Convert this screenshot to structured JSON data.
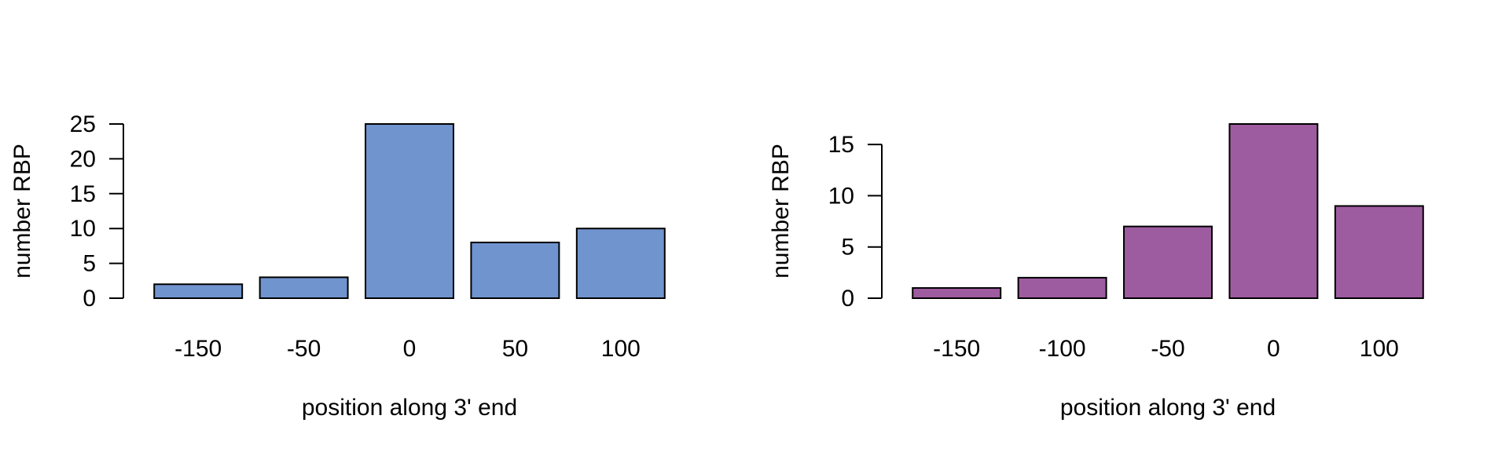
{
  "chart_data": [
    {
      "type": "bar",
      "categories": [
        "-150",
        "-50",
        "0",
        "50",
        "100"
      ],
      "values": [
        2,
        3,
        25,
        8,
        10
      ],
      "xlabel": "position along 3' end",
      "ylabel": "number RBP",
      "ylim": [
        0,
        25
      ],
      "yticks": [
        0,
        5,
        10,
        15,
        20,
        25
      ],
      "color": "#7094CD",
      "grid": false
    },
    {
      "type": "bar",
      "categories": [
        "-150",
        "-100",
        "-50",
        "0",
        "100"
      ],
      "values": [
        1,
        2,
        7,
        17,
        9
      ],
      "xlabel": "position along 3' end",
      "ylabel": "number RBP",
      "ylim": [
        0,
        17
      ],
      "yticks": [
        0,
        5,
        10,
        15
      ],
      "color": "#9E5CA0",
      "grid": false
    }
  ]
}
